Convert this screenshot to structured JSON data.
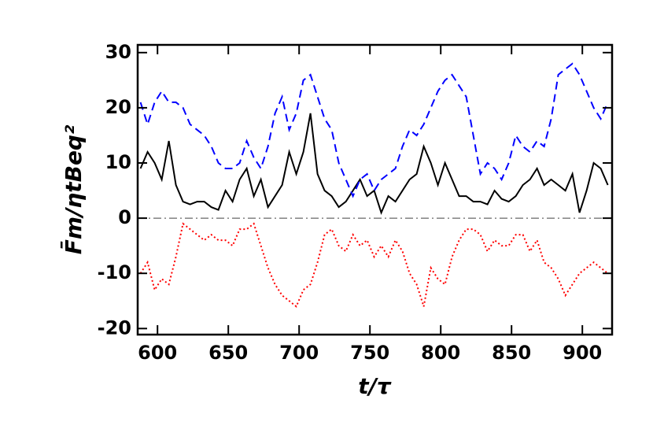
{
  "chart_data": {
    "type": "line",
    "xlabel": "t/τ",
    "ylabel": "F̄m/ηtBeq²",
    "x": [
      588,
      593,
      598,
      603,
      608,
      613,
      618,
      623,
      628,
      633,
      638,
      643,
      648,
      653,
      658,
      663,
      668,
      673,
      678,
      683,
      688,
      693,
      698,
      703,
      708,
      713,
      718,
      723,
      728,
      733,
      738,
      743,
      748,
      753,
      758,
      763,
      768,
      773,
      778,
      783,
      788,
      793,
      798,
      803,
      808,
      813,
      818,
      823,
      828,
      833,
      838,
      843,
      848,
      853,
      858,
      863,
      868,
      873,
      878,
      883,
      888,
      893,
      898,
      903,
      908,
      913,
      918
    ],
    "series": [
      {
        "color": "#000000",
        "dash": "none",
        "values": [
          9,
          12,
          10,
          7,
          14,
          6,
          3,
          2.5,
          3,
          3,
          2,
          1.5,
          5,
          3,
          7,
          9,
          4,
          7,
          2,
          4,
          6,
          12,
          8,
          12,
          19,
          8,
          5,
          4,
          2,
          3,
          5,
          7,
          4,
          5,
          1,
          4,
          3,
          5,
          7,
          8,
          13,
          10,
          6,
          10,
          7,
          4,
          4,
          3,
          3,
          2.5,
          5,
          3.5,
          3,
          4,
          6,
          7,
          9,
          6,
          7,
          6,
          5,
          8,
          1,
          5,
          10,
          9,
          6
        ]
      },
      {
        "color": "#0000ff",
        "dash": "10,6",
        "values": [
          21,
          17,
          21,
          23,
          21,
          21,
          20,
          17,
          16,
          15,
          13,
          10,
          9,
          9,
          10,
          14,
          11,
          9,
          13,
          19,
          22,
          16,
          19,
          25,
          26,
          22,
          18,
          16,
          10,
          7,
          4,
          7,
          8,
          5,
          7,
          8,
          9,
          13,
          16,
          15,
          17,
          20,
          23,
          25,
          26,
          24,
          22,
          15,
          8,
          10,
          9,
          7,
          10,
          15,
          13,
          12,
          14,
          13,
          18,
          26,
          27,
          28,
          26,
          23,
          20,
          18,
          21
        ]
      },
      {
        "color": "#ff0000",
        "dash": "2,3",
        "values": [
          -10,
          -8,
          -13,
          -11,
          -12,
          -7,
          -1,
          -2,
          -3,
          -4,
          -3,
          -4,
          -4,
          -5,
          -2,
          -2,
          -1,
          -5,
          -9,
          -12,
          -14,
          -15,
          -16,
          -13,
          -12,
          -8,
          -3,
          -2,
          -5,
          -6,
          -3,
          -5,
          -4,
          -7,
          -5,
          -7,
          -4,
          -6,
          -10,
          -12,
          -16,
          -9,
          -11,
          -12,
          -7,
          -4,
          -2,
          -2,
          -3,
          -6,
          -4,
          -5,
          -5,
          -3,
          -3,
          -6,
          -4,
          -8,
          -9,
          -11,
          -14,
          -12,
          -10,
          -9,
          -8,
          -9,
          -10
        ]
      }
    ],
    "reference_line": 0,
    "xlim": [
      586,
      921
    ],
    "ylim": [
      -21.1,
      31.4
    ],
    "xticks": [
      600,
      650,
      700,
      750,
      800,
      850,
      900
    ],
    "yticks": [
      -20,
      -10,
      0,
      10,
      20,
      30
    ]
  }
}
